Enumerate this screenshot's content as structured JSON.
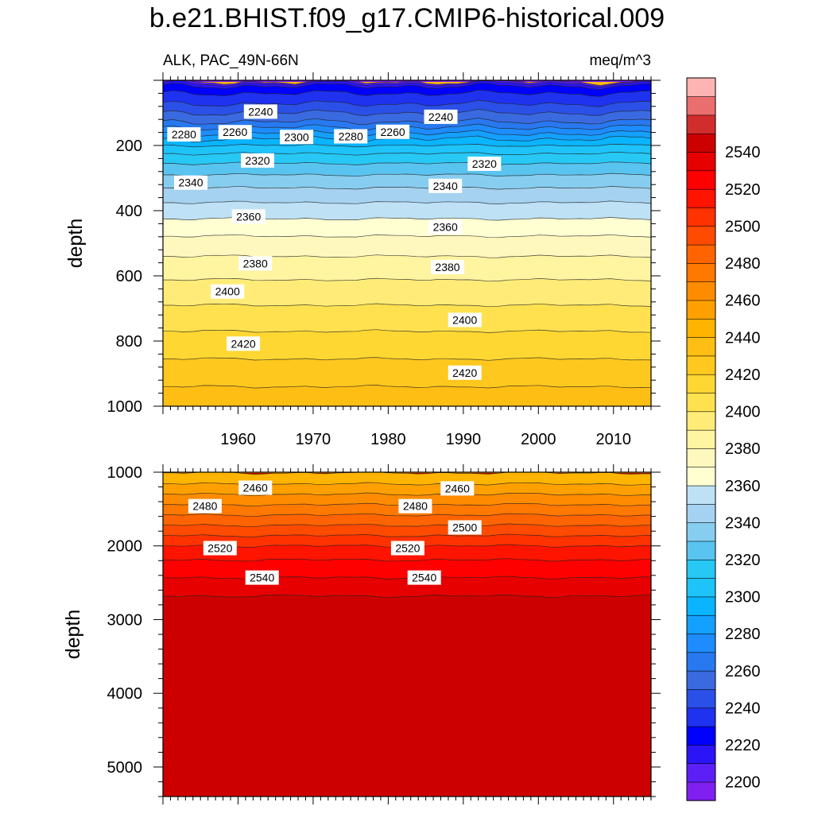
{
  "chart_data": {
    "type": "contour",
    "title": "b.e21.BHIST.f09_g17.CMIP6-historical.009",
    "subtitle_left": "ALK, PAC_49N-66N",
    "subtitle_right": "meq/m^3",
    "variable": "ALK",
    "region": "PAC_49N-66N",
    "units": "meq/m^3",
    "xlabel": "",
    "ylabel": "depth",
    "xlim": [
      1950,
      2015
    ],
    "x_ticks": [
      1960,
      1970,
      1980,
      1990,
      2000,
      2010
    ],
    "panels": [
      {
        "name": "upper",
        "ylim": [
          0,
          1000
        ],
        "y_inverted": true,
        "y_ticks": [
          200,
          400,
          600,
          800,
          1000
        ],
        "x_ticklabels_shown": true,
        "contour_depths": [
          {
            "level": 2200,
            "depth": 5
          },
          {
            "level": 2210,
            "depth": 10
          },
          {
            "level": 2220,
            "depth": 18
          },
          {
            "level": 2230,
            "depth": 40
          },
          {
            "level": 2240,
            "depth": 72
          },
          {
            "level": 2250,
            "depth": 100
          },
          {
            "level": 2260,
            "depth": 127
          },
          {
            "level": 2270,
            "depth": 145
          },
          {
            "level": 2280,
            "depth": 163
          },
          {
            "level": 2290,
            "depth": 180
          },
          {
            "level": 2300,
            "depth": 200
          },
          {
            "level": 2310,
            "depth": 225
          },
          {
            "level": 2320,
            "depth": 255
          },
          {
            "level": 2330,
            "depth": 290
          },
          {
            "level": 2340,
            "depth": 330
          },
          {
            "level": 2350,
            "depth": 375
          },
          {
            "level": 2360,
            "depth": 425
          },
          {
            "level": 2370,
            "depth": 478
          },
          {
            "level": 2380,
            "depth": 540
          },
          {
            "level": 2390,
            "depth": 612
          },
          {
            "level": 2400,
            "depth": 690
          },
          {
            "level": 2410,
            "depth": 770
          },
          {
            "level": 2420,
            "depth": 855
          },
          {
            "level": 2430,
            "depth": 940
          }
        ],
        "labels": [
          {
            "text": "2240",
            "year": 1963,
            "depth": 96
          },
          {
            "text": "2240",
            "year": 1987,
            "depth": 112
          },
          {
            "text": "2260",
            "year": 1959.6,
            "depth": 159
          },
          {
            "text": "2260",
            "year": 1980.6,
            "depth": 158
          },
          {
            "text": "2280",
            "year": 1952.8,
            "depth": 166
          },
          {
            "text": "2280",
            "year": 1975,
            "depth": 172
          },
          {
            "text": "2300",
            "year": 1967.8,
            "depth": 174
          },
          {
            "text": "2320",
            "year": 1962.6,
            "depth": 246
          },
          {
            "text": "2320",
            "year": 1992.8,
            "depth": 256
          },
          {
            "text": "2340",
            "year": 1953.7,
            "depth": 314
          },
          {
            "text": "2340",
            "year": 1987.6,
            "depth": 324
          },
          {
            "text": "2360",
            "year": 1961.4,
            "depth": 418
          },
          {
            "text": "2360",
            "year": 1987.6,
            "depth": 450
          },
          {
            "text": "2380",
            "year": 1962.3,
            "depth": 562
          },
          {
            "text": "2380",
            "year": 1987.9,
            "depth": 573
          },
          {
            "text": "2400",
            "year": 1958.6,
            "depth": 648
          },
          {
            "text": "2400",
            "year": 1990.2,
            "depth": 735
          },
          {
            "text": "2420",
            "year": 1960.7,
            "depth": 808
          },
          {
            "text": "2420",
            "year": 1990.2,
            "depth": 897
          }
        ]
      },
      {
        "name": "lower",
        "ylim": [
          1000,
          5400
        ],
        "y_inverted": true,
        "y_ticks": [
          1000,
          2000,
          3000,
          4000,
          5000
        ],
        "x_ticklabels_shown": false,
        "contour_depths": [
          {
            "level": 2440,
            "depth": 1010
          },
          {
            "level": 2450,
            "depth": 1160
          },
          {
            "level": 2460,
            "depth": 1300
          },
          {
            "level": 2470,
            "depth": 1440
          },
          {
            "level": 2480,
            "depth": 1580
          },
          {
            "level": 2490,
            "depth": 1720
          },
          {
            "level": 2500,
            "depth": 1860
          },
          {
            "level": 2510,
            "depth": 2000
          },
          {
            "level": 2520,
            "depth": 2190
          },
          {
            "level": 2530,
            "depth": 2430
          },
          {
            "level": 2540,
            "depth": 2680
          }
        ],
        "labels": [
          {
            "text": "2460",
            "year": 1962.3,
            "depth": 1210
          },
          {
            "text": "2460",
            "year": 1989.2,
            "depth": 1220
          },
          {
            "text": "2480",
            "year": 1955.6,
            "depth": 1460
          },
          {
            "text": "2480",
            "year": 1983.6,
            "depth": 1460
          },
          {
            "text": "2500",
            "year": 1990.2,
            "depth": 1750
          },
          {
            "text": "2520",
            "year": 1957.6,
            "depth": 2030
          },
          {
            "text": "2520",
            "year": 1982.6,
            "depth": 2030
          },
          {
            "text": "2540",
            "year": 1963.2,
            "depth": 2430
          },
          {
            "text": "2540",
            "year": 1984.8,
            "depth": 2430
          }
        ]
      }
    ],
    "colorbar": {
      "levels": [
        2200,
        2210,
        2220,
        2230,
        2240,
        2250,
        2260,
        2270,
        2280,
        2290,
        2300,
        2310,
        2320,
        2330,
        2340,
        2350,
        2360,
        2370,
        2380,
        2390,
        2400,
        2410,
        2420,
        2430,
        2440,
        2450,
        2460,
        2470,
        2480,
        2490,
        2500,
        2510,
        2520,
        2530,
        2540,
        2550
      ],
      "tick_labels": [
        "2200",
        "2220",
        "2240",
        "2260",
        "2280",
        "2300",
        "2320",
        "2340",
        "2360",
        "2380",
        "2400",
        "2420",
        "2440",
        "2460",
        "2480",
        "2500",
        "2520",
        "2540"
      ],
      "colors": [
        "#7f1ff0",
        "#5c1ff5",
        "#2b14f5",
        "#0000ff",
        "#1e32f0",
        "#2b50e8",
        "#3a6ae0",
        "#2878f0",
        "#1e8cff",
        "#14a0ff",
        "#0ab4ff",
        "#1ec3fa",
        "#28c8f5",
        "#5ac4f0",
        "#87cdf0",
        "#a5d2f0",
        "#bee1f5",
        "#ffffd2",
        "#fff8be",
        "#fff4a0",
        "#ffec78",
        "#ffe150",
        "#ffd732",
        "#ffc81e",
        "#ffbe14",
        "#ffb400",
        "#ffa000",
        "#ff8c00",
        "#ff7800",
        "#ff6400",
        "#ff4b00",
        "#ff3200",
        "#ff1400",
        "#ff0000",
        "#e60000",
        "#cd0000",
        "#d22d2d",
        "#eb6e6e",
        "#ffb4b4"
      ]
    }
  }
}
